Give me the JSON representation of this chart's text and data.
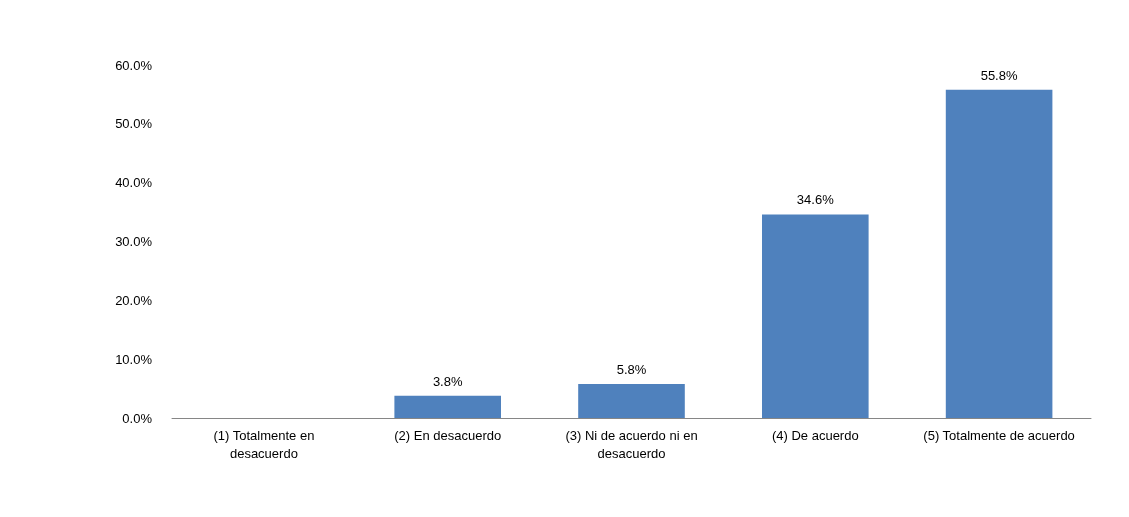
{
  "chart_data": {
    "type": "bar",
    "categories": [
      "(1) Totalmente en\ndesacuerdo",
      "(2) En desacuerdo",
      "(3) Ni de acuerdo ni en\ndesacuerdo",
      "(4) De acuerdo",
      "(5) Totalmente de acuerdo"
    ],
    "values": [
      0,
      3.8,
      5.8,
      34.6,
      55.8
    ],
    "value_labels": [
      null,
      "3.8%",
      "5.8%",
      "34.6%",
      "55.8%"
    ],
    "color": "#4f81bd",
    "ylim": [
      0,
      60
    ],
    "yticks": [
      {
        "value": 0,
        "label": "0.0%"
      },
      {
        "value": 10,
        "label": "10.0%"
      },
      {
        "value": 20,
        "label": "20.0%"
      },
      {
        "value": 30,
        "label": "30.0%"
      },
      {
        "value": 40,
        "label": "40.0%"
      },
      {
        "value": 50,
        "label": "50.0%"
      },
      {
        "value": 60,
        "label": "60.0%"
      }
    ],
    "grid": false
  }
}
